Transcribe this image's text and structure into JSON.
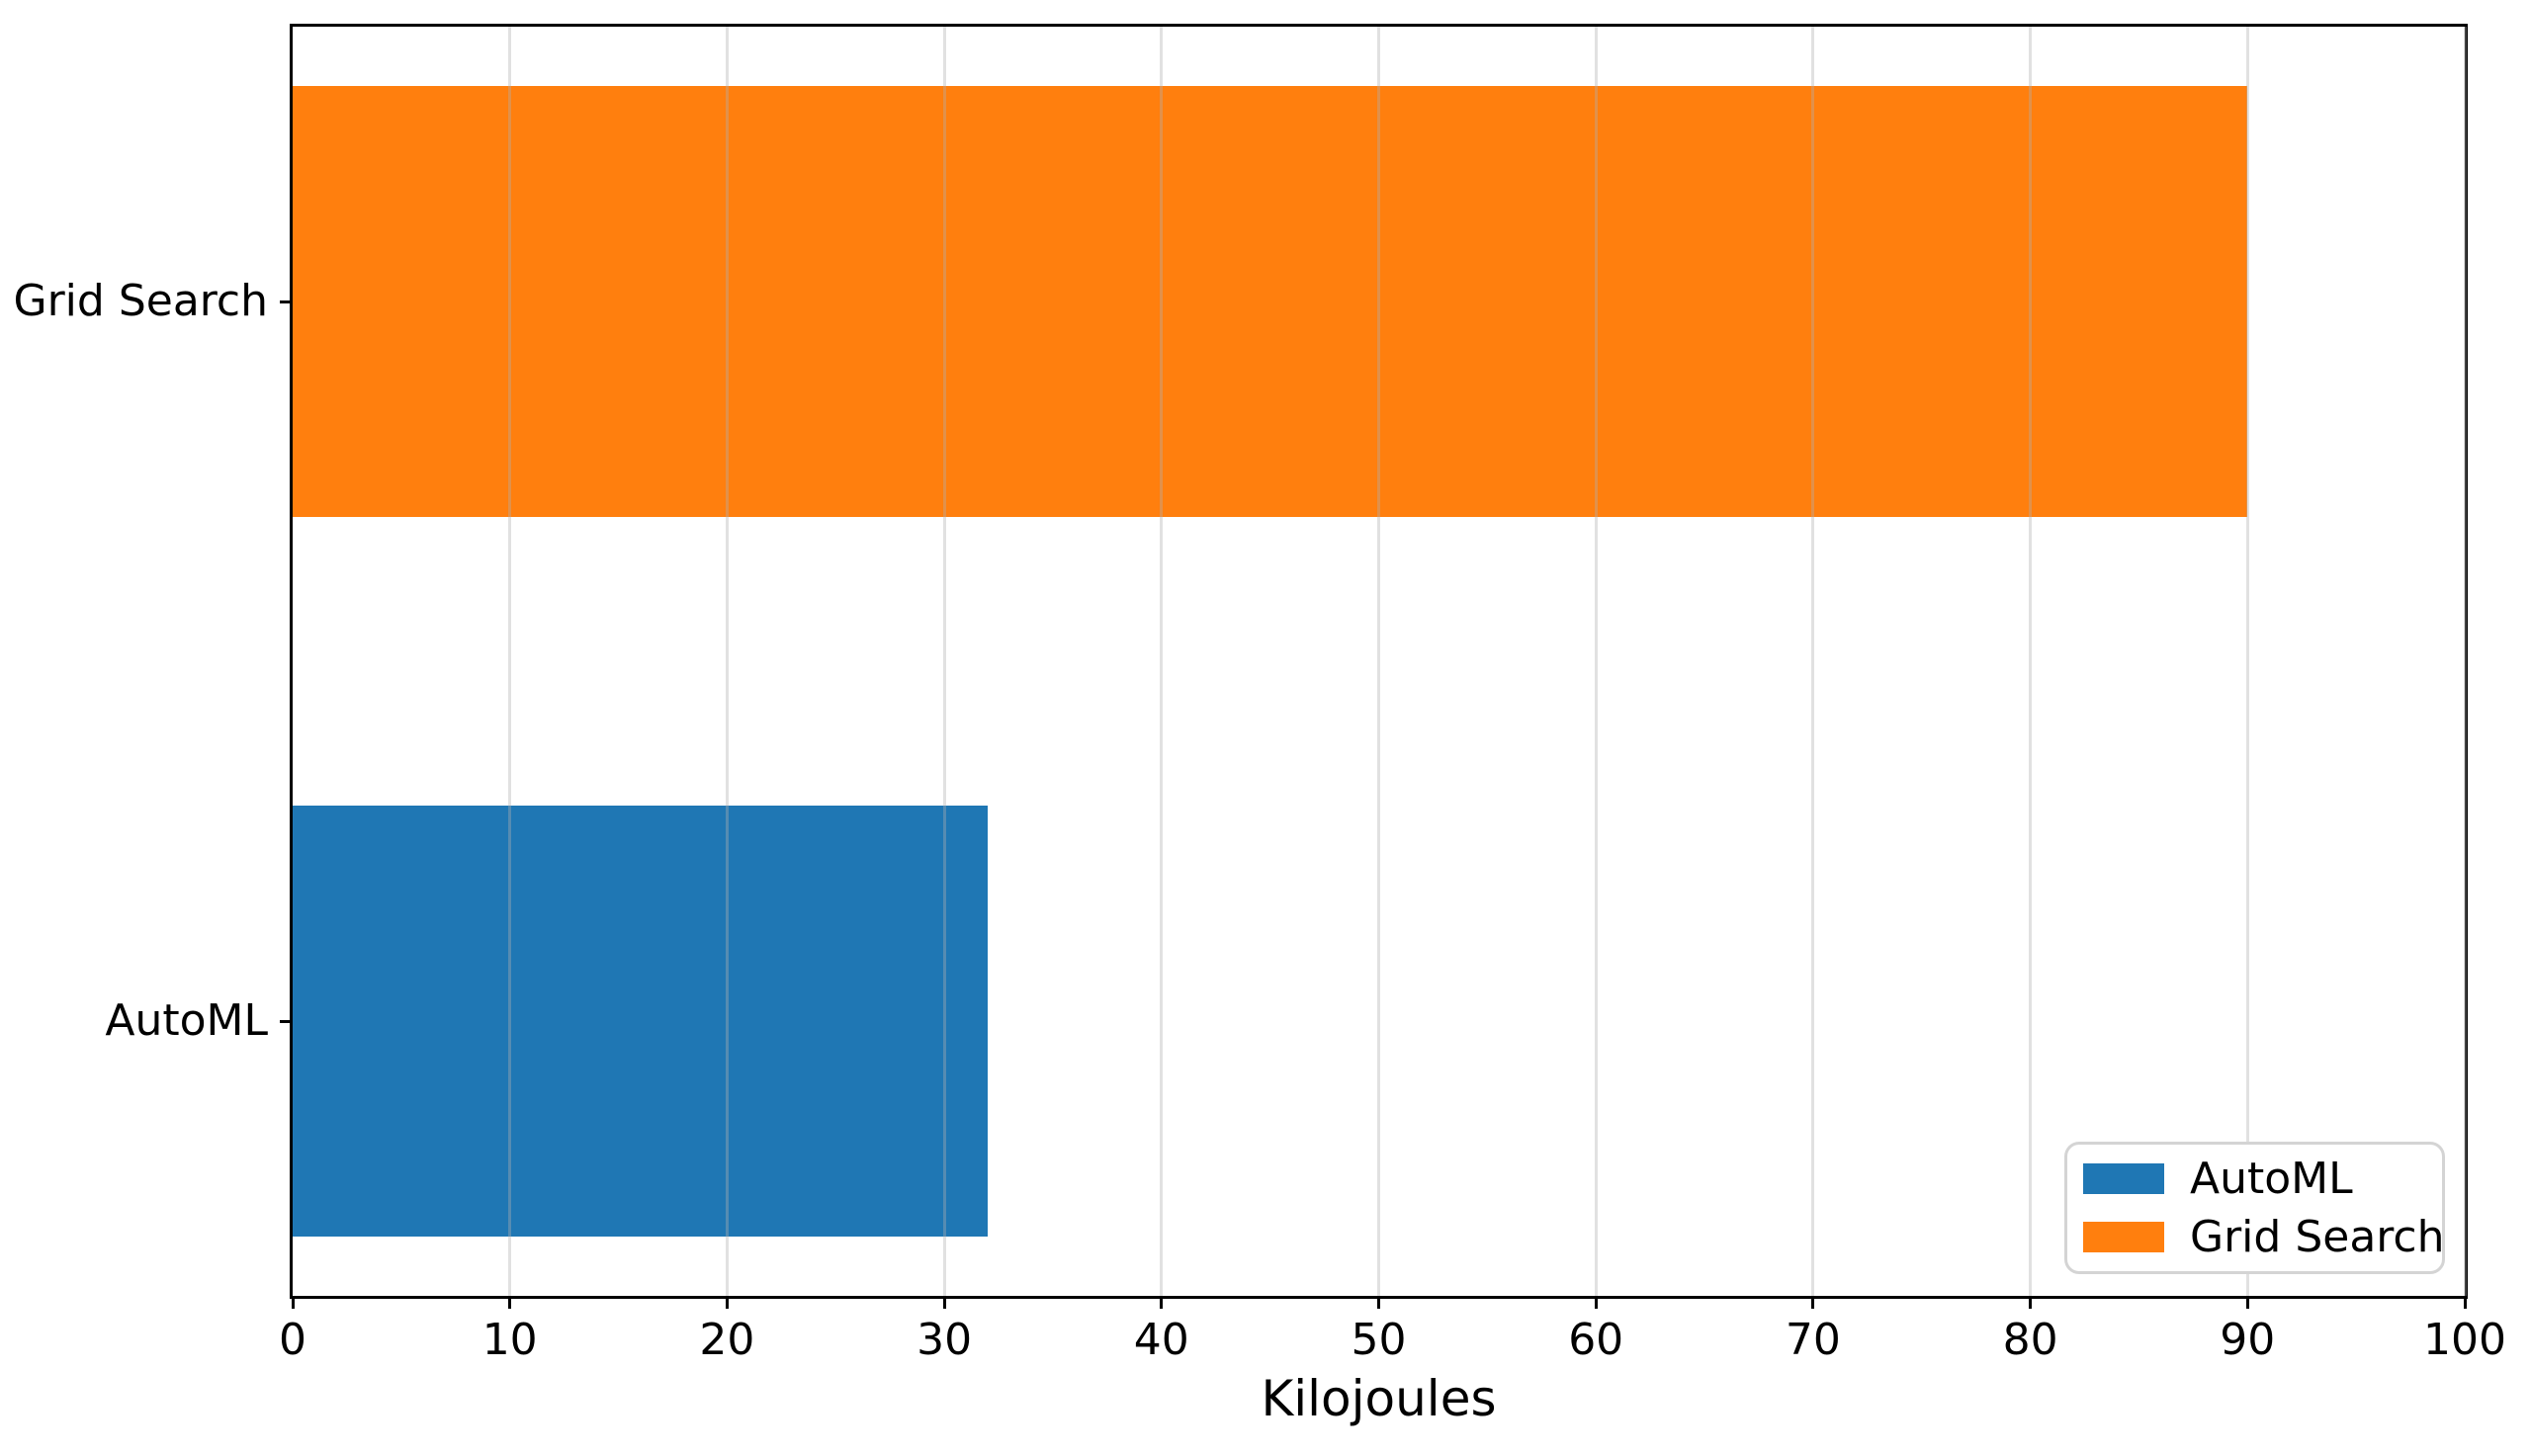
{
  "chart_data": {
    "type": "bar",
    "orientation": "horizontal",
    "title": "",
    "xlabel": "Kilojoules",
    "ylabel": "",
    "categories": [
      "AutoML",
      "Grid Search"
    ],
    "values": [
      32,
      90
    ],
    "bar_colors": [
      "#1f77b4",
      "#ff7f0e"
    ],
    "xlim": [
      0,
      100
    ],
    "xticks": [
      0,
      10,
      20,
      30,
      40,
      50,
      60,
      70,
      80,
      90,
      100
    ],
    "grid": "vertical",
    "gridline_color": "#e7e7e7",
    "spine_color": "#000000",
    "legend": {
      "position": "lower right",
      "entries": [
        {
          "label": "AutoML",
          "color": "#1f77b4"
        },
        {
          "label": "Grid Search",
          "color": "#ff7f0e"
        }
      ]
    }
  }
}
